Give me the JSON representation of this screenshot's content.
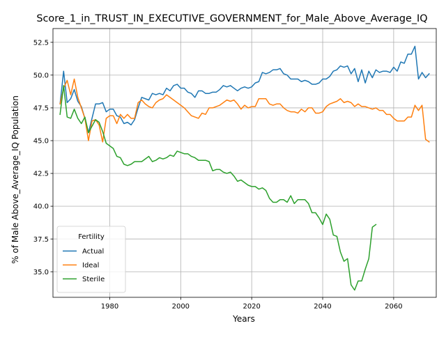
{
  "chart_data": {
    "type": "line",
    "title": "Score_1_in_TRUST_IN_EXECUTIVE_GOVERNMENT_for_Male_Above_Average_IQ",
    "xlabel": "Years",
    "ylabel": "% of Male Above_Average_IQ Population",
    "xlim": [
      2964,
      3072
    ],
    "ylim": [
      33.05,
      53.55
    ],
    "x_ticks": [
      1980,
      2000,
      2020,
      2040,
      2060
    ],
    "y_ticks": [
      35.0,
      37.5,
      40.0,
      42.5,
      45.0,
      47.5,
      50.0,
      52.5
    ],
    "x_tick_labels": [
      "1980",
      "2000",
      "2020",
      "2040",
      "2060"
    ],
    "y_tick_labels": [
      "35.0",
      "37.5",
      "40.0",
      "42.5",
      "45.0",
      "47.5",
      "50.0",
      "52.5"
    ],
    "grid": true,
    "legend": {
      "title": "Fertility",
      "position": "lower-left"
    },
    "series": [
      {
        "name": "Actual",
        "color": "#1f77b4",
        "x": [
          1966,
          1967,
          1968,
          1969,
          1970,
          1971,
          1972,
          1973,
          1974,
          1975,
          1976,
          1977,
          1978,
          1979,
          1980,
          1981,
          1982,
          1983,
          1984,
          1985,
          1986,
          1987,
          1988,
          1989,
          1990,
          1991,
          1992,
          1993,
          1994,
          1995,
          1996,
          1997,
          1998,
          1999,
          2000,
          2001,
          2002,
          2003,
          2004,
          2005,
          2006,
          2007,
          2008,
          2009,
          2010,
          2011,
          2012,
          2013,
          2014,
          2015,
          2016,
          2017,
          2018,
          2019,
          2020,
          2021,
          2022,
          2023,
          2024,
          2025,
          2026,
          2027,
          2028,
          2029,
          2030,
          2031,
          2032,
          2033,
          2034,
          2035,
          2036,
          2037,
          2038,
          2039,
          2040,
          2041,
          2042,
          2043,
          2044,
          2045,
          2046,
          2047,
          2048,
          2049,
          2050,
          2051,
          2052,
          2053,
          2054,
          2055,
          2056,
          2057,
          2058,
          2059,
          2060,
          2061,
          2062,
          2063,
          2064,
          2065,
          2066,
          2067,
          2068,
          2069,
          2070
        ],
        "values": [
          47.8,
          50.3,
          47.9,
          48.2,
          48.9,
          48.0,
          47.6,
          46.7,
          45.6,
          46.7,
          47.8,
          47.8,
          47.9,
          47.2,
          47.4,
          47.4,
          46.9,
          46.8,
          46.3,
          46.4,
          46.2,
          46.6,
          47.5,
          48.3,
          48.2,
          48.1,
          48.6,
          48.5,
          48.6,
          48.5,
          49.0,
          48.8,
          49.2,
          49.3,
          49.0,
          49.0,
          48.7,
          48.6,
          48.3,
          48.8,
          48.8,
          48.6,
          48.6,
          48.7,
          48.7,
          48.9,
          49.2,
          49.1,
          49.2,
          49.0,
          48.8,
          49.0,
          49.1,
          49.0,
          49.1,
          49.4,
          49.5,
          50.2,
          50.1,
          50.2,
          50.4,
          50.4,
          50.5,
          50.1,
          50.0,
          49.7,
          49.7,
          49.7,
          49.5,
          49.6,
          49.5,
          49.3,
          49.3,
          49.4,
          49.7,
          49.7,
          49.9,
          50.3,
          50.4,
          50.7,
          50.6,
          50.7,
          50.1,
          50.5,
          49.5,
          50.4,
          49.4,
          50.3,
          49.8,
          50.4,
          50.2,
          50.3,
          50.3,
          50.2,
          50.6,
          50.3,
          51.0,
          50.9,
          51.6,
          51.6,
          52.2,
          49.7,
          50.2,
          49.8,
          50.1
        ]
      },
      {
        "name": "Ideal",
        "color": "#ff7f0e",
        "x": [
          1966,
          1967,
          1968,
          1969,
          1970,
          1971,
          1972,
          1973,
          1974,
          1975,
          1976,
          1977,
          1978,
          1979,
          1980,
          1981,
          1982,
          1983,
          1984,
          1985,
          1986,
          1987,
          1988,
          1989,
          1990,
          1991,
          1992,
          1993,
          1994,
          1995,
          1996,
          1997,
          1998,
          1999,
          2000,
          2001,
          2002,
          2003,
          2004,
          2005,
          2006,
          2007,
          2008,
          2009,
          2010,
          2011,
          2012,
          2013,
          2014,
          2015,
          2016,
          2017,
          2018,
          2019,
          2020,
          2021,
          2022,
          2023,
          2024,
          2025,
          2026,
          2027,
          2028,
          2029,
          2030,
          2031,
          2032,
          2033,
          2034,
          2035,
          2036,
          2037,
          2038,
          2039,
          2040,
          2041,
          2042,
          2043,
          2044,
          2045,
          2046,
          2047,
          2048,
          2049,
          2050,
          2051,
          2052,
          2053,
          2054,
          2055,
          2056,
          2057,
          2058,
          2059,
          2060,
          2061,
          2062,
          2063,
          2064,
          2065,
          2066,
          2067,
          2068,
          2069,
          2070
        ],
        "values": [
          47.8,
          49.0,
          49.6,
          48.5,
          49.7,
          48.3,
          47.5,
          46.7,
          45.0,
          46.5,
          46.6,
          46.2,
          44.9,
          46.7,
          46.9,
          46.9,
          46.3,
          47.0,
          46.7,
          47.0,
          46.7,
          46.7,
          47.9,
          48.1,
          47.8,
          47.6,
          47.5,
          47.9,
          48.1,
          48.2,
          48.5,
          48.3,
          48.1,
          47.9,
          47.7,
          47.5,
          47.2,
          46.9,
          46.8,
          46.7,
          47.1,
          47.0,
          47.5,
          47.5,
          47.6,
          47.7,
          47.9,
          48.1,
          48.0,
          48.1,
          47.8,
          47.4,
          47.7,
          47.5,
          47.6,
          47.6,
          48.2,
          48.2,
          48.2,
          47.8,
          47.7,
          47.8,
          47.8,
          47.5,
          47.3,
          47.2,
          47.2,
          47.1,
          47.4,
          47.2,
          47.5,
          47.5,
          47.1,
          47.1,
          47.2,
          47.6,
          47.8,
          47.9,
          48.0,
          48.2,
          47.9,
          48.0,
          47.9,
          47.6,
          47.8,
          47.6,
          47.6,
          47.5,
          47.4,
          47.5,
          47.3,
          47.3,
          47.0,
          47.0,
          46.7,
          46.5,
          46.5,
          46.5,
          46.8,
          46.8,
          47.7,
          47.3,
          47.7,
          45.1,
          44.9
        ]
      },
      {
        "name": "Sterile",
        "color": "#2ca02c",
        "x": [
          1966,
          1967,
          1968,
          1969,
          1970,
          1971,
          1972,
          1973,
          1974,
          1975,
          1976,
          1977,
          1978,
          1979,
          1980,
          1981,
          1982,
          1983,
          1984,
          1985,
          1986,
          1987,
          1988,
          1989,
          1990,
          1991,
          1992,
          1993,
          1994,
          1995,
          1996,
          1997,
          1998,
          1999,
          2000,
          2001,
          2002,
          2003,
          2004,
          2005,
          2006,
          2007,
          2008,
          2009,
          2010,
          2011,
          2012,
          2013,
          2014,
          2015,
          2016,
          2017,
          2018,
          2019,
          2020,
          2021,
          2022,
          2023,
          2024,
          2025,
          2026,
          2027,
          2028,
          2029,
          2030,
          2031,
          2032,
          2033,
          2034,
          2035,
          2036,
          2037,
          2038,
          2039,
          2040,
          2041,
          2042,
          2043,
          2044,
          2045,
          2046,
          2047,
          2048,
          2049,
          2050,
          2051,
          2052,
          2053,
          2054,
          2055
        ],
        "values": [
          47.0,
          49.2,
          46.8,
          46.7,
          47.4,
          46.7,
          46.3,
          46.8,
          45.6,
          46.1,
          46.6,
          46.4,
          45.7,
          44.8,
          44.6,
          44.4,
          43.8,
          43.7,
          43.2,
          43.1,
          43.2,
          43.4,
          43.4,
          43.4,
          43.6,
          43.8,
          43.4,
          43.5,
          43.7,
          43.6,
          43.7,
          43.9,
          43.8,
          44.2,
          44.1,
          44.0,
          44.0,
          43.8,
          43.7,
          43.5,
          43.5,
          43.5,
          43.4,
          42.7,
          42.8,
          42.8,
          42.6,
          42.5,
          42.6,
          42.3,
          41.9,
          42.0,
          41.8,
          41.6,
          41.5,
          41.5,
          41.3,
          41.4,
          41.2,
          40.6,
          40.3,
          40.3,
          40.5,
          40.5,
          40.3,
          40.8,
          40.2,
          40.5,
          40.5,
          40.5,
          40.2,
          39.5,
          39.5,
          39.1,
          38.6,
          39.4,
          39.0,
          37.8,
          37.7,
          36.5,
          35.8,
          36.0,
          34.0,
          33.6,
          34.3,
          34.3,
          35.2,
          36.0,
          38.4,
          38.6
        ]
      }
    ]
  }
}
